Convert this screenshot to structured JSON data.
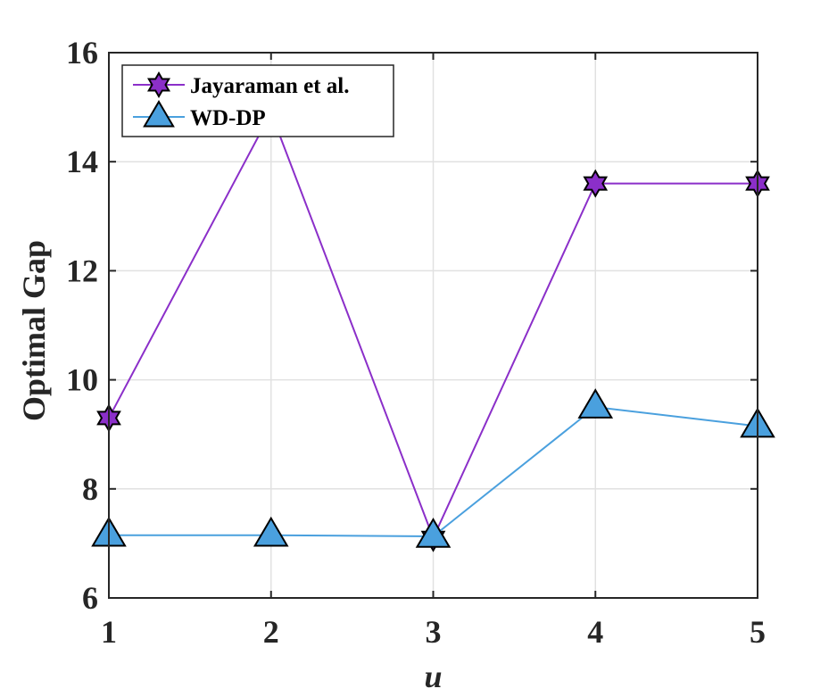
{
  "chart_data": {
    "type": "line",
    "x": [
      1,
      2,
      3,
      4,
      5
    ],
    "xticks": [
      "1",
      "2",
      "3",
      "4",
      "5"
    ],
    "yticks": [
      "6",
      "8",
      "10",
      "12",
      "14",
      "16"
    ],
    "xlabel": "u",
    "ylabel": "Optimal Gap",
    "xlim": [
      1,
      5
    ],
    "ylim": [
      6,
      16
    ],
    "grid": true,
    "legend_position": "top-left",
    "series": [
      {
        "name": "Jayaraman et al.",
        "values": [
          9.3,
          14.9,
          7.1,
          13.6,
          13.6
        ],
        "color": "#8b2fc9",
        "marker": "hexagram",
        "marker_fill": "#8b2fc9"
      },
      {
        "name": "WD-DP",
        "values": [
          7.15,
          7.15,
          7.13,
          9.5,
          9.15
        ],
        "color": "#4aa0de",
        "marker": "triangle",
        "marker_fill": "#4aa0de"
      }
    ]
  }
}
